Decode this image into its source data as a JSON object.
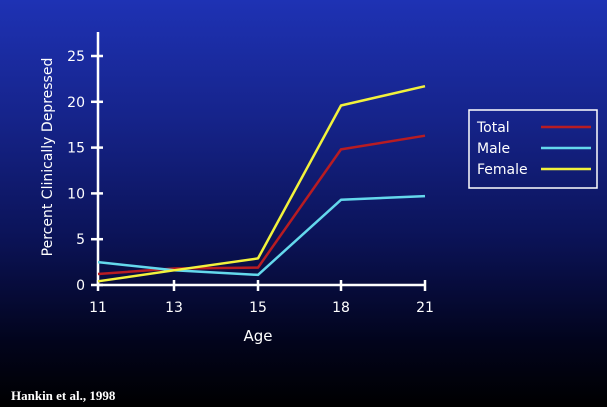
{
  "citation": "Hankin et al., 1998",
  "chart_data": {
    "type": "line",
    "xlabel": "Age",
    "ylabel": "Percent Clinically Depressed",
    "x": [
      11,
      13,
      15,
      18,
      21
    ],
    "ylim": [
      0,
      25
    ],
    "yticks": [
      0,
      5,
      10,
      15,
      20,
      25
    ],
    "grid": false,
    "legend_position": "right",
    "series": [
      {
        "name": "Total",
        "color": "#b81c22",
        "values": [
          1.2,
          1.8,
          1.9,
          14.8,
          16.3
        ]
      },
      {
        "name": "Male",
        "color": "#64d8ec",
        "values": [
          2.5,
          1.6,
          1.1,
          9.3,
          9.7
        ]
      },
      {
        "name": "Female",
        "color": "#f2f23c",
        "values": [
          0.4,
          1.6,
          2.9,
          19.6,
          21.7
        ]
      }
    ]
  }
}
